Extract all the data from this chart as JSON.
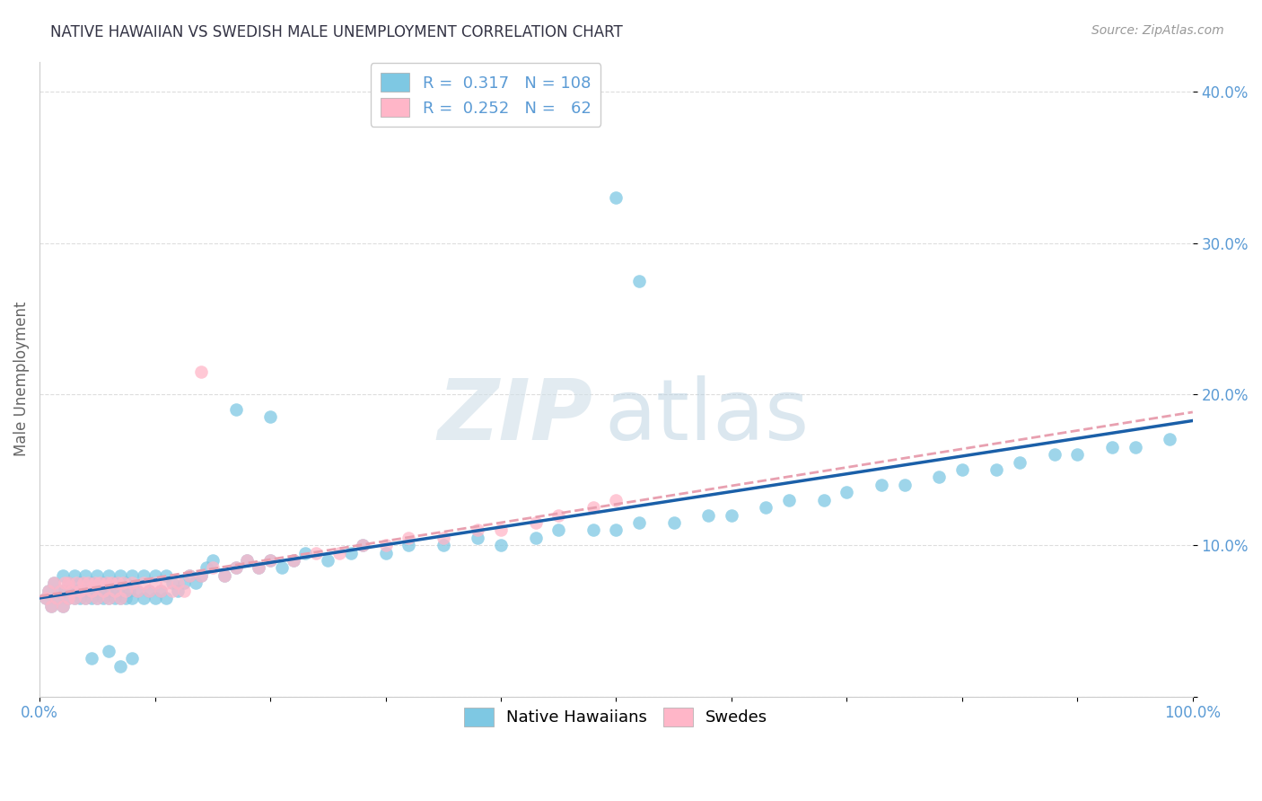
{
  "title": "NATIVE HAWAIIAN VS SWEDISH MALE UNEMPLOYMENT CORRELATION CHART",
  "source": "Source: ZipAtlas.com",
  "ylabel": "Male Unemployment",
  "xlim": [
    0.0,
    1.0
  ],
  "ylim": [
    0.0,
    0.42
  ],
  "color_blue": "#7ec8e3",
  "color_pink": "#ffb6c8",
  "line_color_blue": "#1a5fa8",
  "line_color_pink": "#e8a0b0",
  "axis_color": "#5b9bd5",
  "grid_color": "#dddddd",
  "background_color": "#ffffff",
  "title_color": "#333344",
  "blue_x": [
    0.005,
    0.008,
    0.01,
    0.012,
    0.015,
    0.018,
    0.02,
    0.02,
    0.022,
    0.025,
    0.025,
    0.028,
    0.03,
    0.03,
    0.032,
    0.035,
    0.035,
    0.038,
    0.04,
    0.04,
    0.042,
    0.045,
    0.045,
    0.048,
    0.05,
    0.05,
    0.052,
    0.055,
    0.055,
    0.058,
    0.06,
    0.06,
    0.062,
    0.065,
    0.065,
    0.068,
    0.07,
    0.07,
    0.072,
    0.075,
    0.075,
    0.078,
    0.08,
    0.08,
    0.085,
    0.09,
    0.09,
    0.095,
    0.1,
    0.1,
    0.105,
    0.11,
    0.11,
    0.115,
    0.12,
    0.125,
    0.13,
    0.135,
    0.14,
    0.145,
    0.15,
    0.16,
    0.17,
    0.18,
    0.19,
    0.2,
    0.21,
    0.22,
    0.23,
    0.25,
    0.27,
    0.28,
    0.3,
    0.32,
    0.35,
    0.38,
    0.4,
    0.43,
    0.45,
    0.48,
    0.5,
    0.52,
    0.55,
    0.58,
    0.6,
    0.63,
    0.65,
    0.68,
    0.7,
    0.73,
    0.75,
    0.78,
    0.8,
    0.83,
    0.85,
    0.88,
    0.9,
    0.93,
    0.95,
    0.98,
    0.5,
    0.52,
    0.17,
    0.2,
    0.045,
    0.06,
    0.07,
    0.08
  ],
  "blue_y": [
    0.065,
    0.07,
    0.06,
    0.075,
    0.065,
    0.07,
    0.06,
    0.08,
    0.07,
    0.065,
    0.075,
    0.07,
    0.065,
    0.08,
    0.07,
    0.065,
    0.075,
    0.07,
    0.065,
    0.08,
    0.07,
    0.065,
    0.075,
    0.07,
    0.065,
    0.08,
    0.07,
    0.065,
    0.075,
    0.07,
    0.065,
    0.08,
    0.07,
    0.065,
    0.075,
    0.07,
    0.065,
    0.08,
    0.07,
    0.065,
    0.075,
    0.07,
    0.065,
    0.08,
    0.07,
    0.065,
    0.08,
    0.07,
    0.065,
    0.08,
    0.07,
    0.065,
    0.08,
    0.075,
    0.07,
    0.075,
    0.08,
    0.075,
    0.08,
    0.085,
    0.09,
    0.08,
    0.085,
    0.09,
    0.085,
    0.09,
    0.085,
    0.09,
    0.095,
    0.09,
    0.095,
    0.1,
    0.095,
    0.1,
    0.1,
    0.105,
    0.1,
    0.105,
    0.11,
    0.11,
    0.11,
    0.115,
    0.115,
    0.12,
    0.12,
    0.125,
    0.13,
    0.13,
    0.135,
    0.14,
    0.14,
    0.145,
    0.15,
    0.15,
    0.155,
    0.16,
    0.16,
    0.165,
    0.165,
    0.17,
    0.33,
    0.275,
    0.19,
    0.185,
    0.025,
    0.03,
    0.02,
    0.025
  ],
  "pink_x": [
    0.005,
    0.008,
    0.01,
    0.012,
    0.015,
    0.018,
    0.02,
    0.022,
    0.025,
    0.025,
    0.028,
    0.03,
    0.032,
    0.035,
    0.038,
    0.04,
    0.042,
    0.045,
    0.048,
    0.05,
    0.052,
    0.055,
    0.058,
    0.06,
    0.062,
    0.065,
    0.068,
    0.07,
    0.072,
    0.075,
    0.08,
    0.085,
    0.09,
    0.095,
    0.1,
    0.105,
    0.11,
    0.115,
    0.12,
    0.125,
    0.13,
    0.14,
    0.15,
    0.16,
    0.17,
    0.18,
    0.19,
    0.2,
    0.22,
    0.24,
    0.26,
    0.28,
    0.3,
    0.32,
    0.35,
    0.38,
    0.4,
    0.43,
    0.45,
    0.48,
    0.5,
    0.14
  ],
  "pink_y": [
    0.065,
    0.07,
    0.06,
    0.075,
    0.065,
    0.07,
    0.06,
    0.075,
    0.065,
    0.075,
    0.07,
    0.065,
    0.075,
    0.07,
    0.075,
    0.065,
    0.075,
    0.07,
    0.075,
    0.065,
    0.075,
    0.07,
    0.075,
    0.065,
    0.075,
    0.07,
    0.075,
    0.065,
    0.075,
    0.07,
    0.075,
    0.07,
    0.075,
    0.07,
    0.075,
    0.07,
    0.075,
    0.07,
    0.075,
    0.07,
    0.08,
    0.08,
    0.085,
    0.08,
    0.085,
    0.09,
    0.085,
    0.09,
    0.09,
    0.095,
    0.095,
    0.1,
    0.1,
    0.105,
    0.105,
    0.11,
    0.11,
    0.115,
    0.12,
    0.125,
    0.13,
    0.215
  ]
}
